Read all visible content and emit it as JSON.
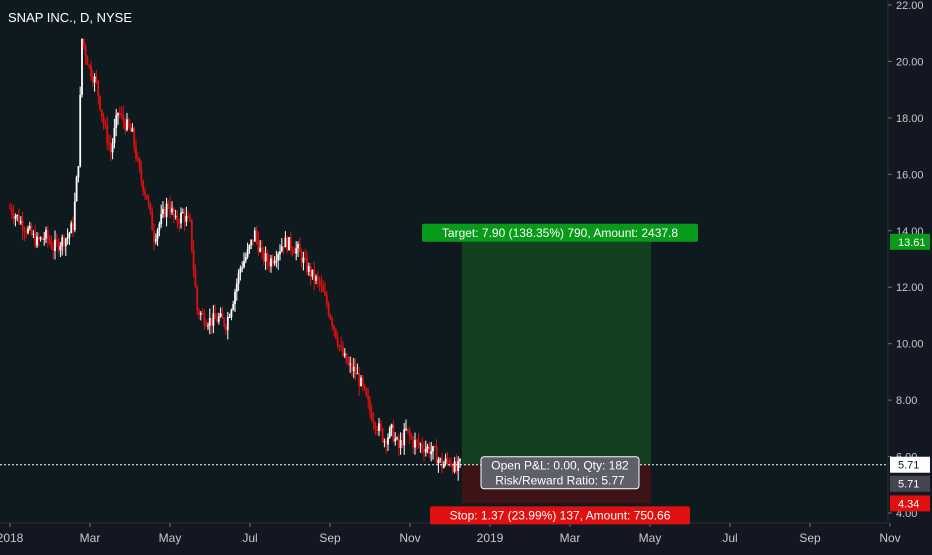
{
  "header": {
    "symbol_title": "SNAP INC., D, NYSE"
  },
  "colors": {
    "background": "#0f1a1e",
    "up_candle": "#ffffff",
    "down_candle": "#e01010",
    "target_zone": "#13401e",
    "stop_zone": "#3d1316",
    "target_label_bg": "#089a19",
    "stop_label_bg": "#e01010",
    "axis_text": "#c8c8c8"
  },
  "chart_data": {
    "type": "candlestick",
    "x_ticks": [
      "2018",
      "Mar",
      "May",
      "Jul",
      "Sep",
      "Nov",
      "2019",
      "Mar",
      "May",
      "Jul",
      "Sep",
      "Nov"
    ],
    "y_ticks": [
      "22.00",
      "20.00",
      "18.00",
      "16.00",
      "14.00",
      "12.00",
      "10.00",
      "8.00",
      "6.00",
      "4.00"
    ],
    "ylim": [
      4,
      22
    ],
    "price_path": [
      [
        0,
        14.8
      ],
      [
        5,
        14.4
      ],
      [
        10,
        14.0
      ],
      [
        15,
        13.6
      ],
      [
        20,
        13.8
      ],
      [
        24,
        13.4
      ],
      [
        28,
        13.6
      ],
      [
        32,
        13.8
      ],
      [
        35,
        14.2
      ],
      [
        38,
        16.5
      ],
      [
        40,
        20.8
      ],
      [
        44,
        19.8
      ],
      [
        48,
        19.2
      ],
      [
        52,
        17.8
      ],
      [
        56,
        16.8
      ],
      [
        60,
        18.2
      ],
      [
        64,
        17.8
      ],
      [
        68,
        17.4
      ],
      [
        72,
        16.0
      ],
      [
        76,
        15.2
      ],
      [
        80,
        13.8
      ],
      [
        84,
        14.4
      ],
      [
        88,
        15.0
      ],
      [
        92,
        14.3
      ],
      [
        96,
        14.6
      ],
      [
        100,
        14.2
      ],
      [
        104,
        11.2
      ],
      [
        108,
        10.9
      ],
      [
        112,
        10.8
      ],
      [
        116,
        10.9
      ],
      [
        120,
        10.7
      ],
      [
        124,
        11.6
      ],
      [
        128,
        12.7
      ],
      [
        132,
        13.2
      ],
      [
        136,
        13.9
      ],
      [
        140,
        13.1
      ],
      [
        144,
        12.9
      ],
      [
        148,
        13.2
      ],
      [
        152,
        13.6
      ],
      [
        156,
        13.5
      ],
      [
        160,
        13.3
      ],
      [
        164,
        12.8
      ],
      [
        168,
        12.4
      ],
      [
        172,
        12.1
      ],
      [
        176,
        11.4
      ],
      [
        180,
        10.6
      ],
      [
        184,
        9.7
      ],
      [
        188,
        9.2
      ],
      [
        192,
        9.0
      ],
      [
        196,
        8.4
      ],
      [
        200,
        7.6
      ],
      [
        204,
        7.1
      ],
      [
        208,
        6.6
      ],
      [
        212,
        6.9
      ],
      [
        216,
        6.3
      ],
      [
        220,
        6.9
      ],
      [
        224,
        6.5
      ],
      [
        228,
        6.4
      ],
      [
        232,
        6.3
      ],
      [
        236,
        6.1
      ],
      [
        240,
        5.7
      ],
      [
        244,
        5.9
      ],
      [
        248,
        5.5
      ],
      [
        250,
        5.7
      ]
    ],
    "current_price": "5.71",
    "position": {
      "entry": 5.71,
      "target": 13.61,
      "stop": 4.34,
      "target_label": "Target: 7.90 (138.35%) 790, Amount: 2437.8",
      "stop_label": "Stop: 1.37 (23.99%) 137, Amount: 750.66",
      "pnl_label": "Open P&L: 0.00, Qty: 182",
      "rr_label": "Risk/Reward Ratio: 5.77",
      "target_price_badge": "13.61",
      "entry_price_badge": "5.71",
      "stop_price_badge": "4.34"
    }
  }
}
